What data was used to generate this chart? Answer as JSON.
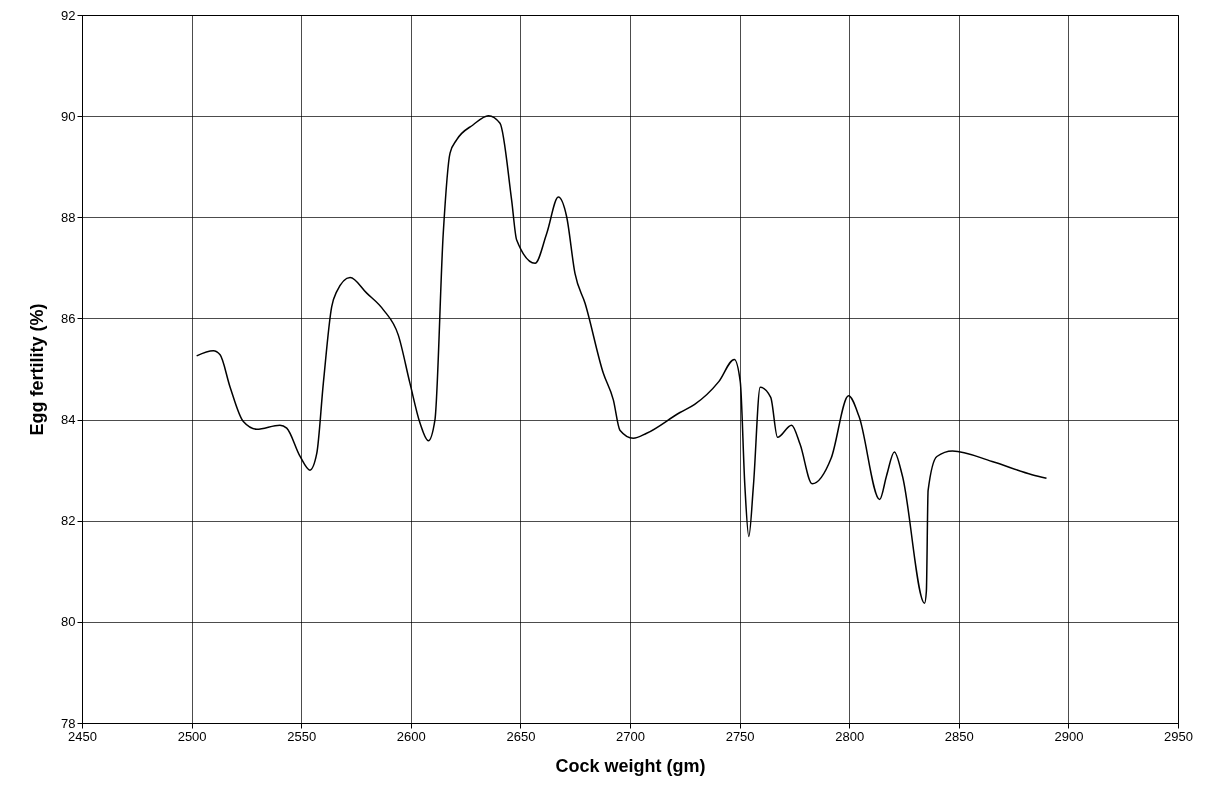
{
  "chart_data": {
    "type": "line",
    "xlabel": "Cock weight (gm)",
    "ylabel": "Egg fertility (%)",
    "x": [
      2502.3,
      2509.9,
      2513,
      2517.5,
      2523.6,
      2529.7,
      2540.3,
      2543.4,
      2549.5,
      2554,
      2557.1,
      2560.1,
      2563.9,
      2566.2,
      2572.3,
      2579.9,
      2587.5,
      2594.3,
      2599.6,
      2604.2,
      2608,
      2611,
      2614.8,
      2617.9,
      2620.9,
      2628.5,
      2635.4,
      2640.7,
      2646,
      2648.3,
      2656.7,
      2662,
      2667.3,
      2671.1,
      2674.9,
      2679.5,
      2687.8,
      2692.4,
      2695.4,
      2701.5,
      2707.6,
      2722.8,
      2729.5,
      2740.5,
      2747.6,
      2750.3,
      2752.4,
      2754.2,
      2756.3,
      2759.4,
      2764.2,
      2767.3,
      2773.7,
      2777.6,
      2783.1,
      2791.8,
      2799.7,
      2804.5,
      2813.9,
      2817.1,
      2820.6,
      2824.2,
      2834.4,
      2835.2,
      2836,
      2840,
      2847.1,
      2865.2,
      2883.4,
      2890
    ],
    "series": [
      {
        "color": "#000000",
        "values": [
          85.26,
          85.36,
          85.28,
          84.65,
          83.96,
          83.81,
          83.89,
          83.83,
          83.27,
          83.0,
          83.33,
          84.72,
          86.23,
          86.53,
          86.81,
          86.5,
          86.17,
          85.67,
          84.72,
          83.93,
          83.58,
          83.99,
          87.68,
          89.27,
          89.53,
          89.83,
          90.01,
          89.86,
          88.34,
          87.55,
          87.09,
          87.68,
          88.4,
          88.01,
          86.89,
          86.3,
          84.92,
          84.39,
          83.79,
          83.63,
          83.73,
          84.14,
          84.3,
          84.75,
          85.19,
          84.75,
          82.69,
          81.69,
          82.69,
          84.64,
          84.44,
          83.65,
          83.89,
          83.51,
          82.73,
          83.24,
          84.47,
          84.06,
          82.42,
          82.9,
          83.36,
          82.9,
          80.37,
          80.6,
          82.6,
          83.27,
          83.38,
          83.17,
          82.91,
          82.84
        ]
      }
    ],
    "xlim": [
      2450,
      2950
    ],
    "xticks": [
      2450,
      2500,
      2550,
      2600,
      2650,
      2700,
      2750,
      2800,
      2850,
      2900,
      2950
    ],
    "ylim": [
      78,
      92
    ],
    "yticks": [
      78,
      80,
      82,
      84,
      86,
      88,
      90,
      92
    ],
    "grid": true,
    "marker": "none",
    "line_style": "solid"
  }
}
